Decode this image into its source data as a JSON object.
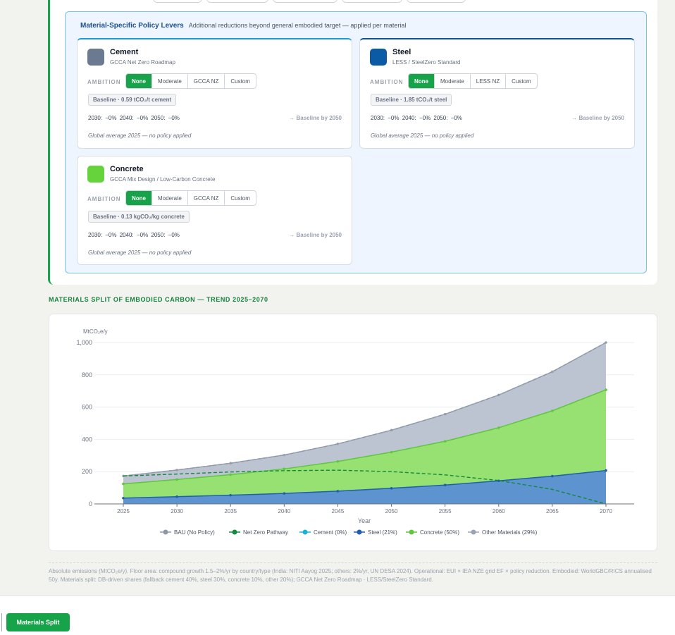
{
  "policy": {
    "title": "Material-Specific Policy Levers",
    "subtitle": "Additional reductions beyond general embodied target — applied per material",
    "ambition_label": "AMBITION",
    "materials": [
      {
        "name": "Cement",
        "roadmap": "GCCA Net Zero Roadmap",
        "color": "#6b7a90",
        "options": [
          "None",
          "Moderate",
          "GCCA NZ",
          "Custom"
        ],
        "active": "None",
        "baseline": "Baseline · 0.59 tCO₂/t cement",
        "targets": "2030: −0%   2040: −0%   2050: −0%",
        "baseline_2050": "→ Baseline by 2050",
        "note": "Global average 2025 — no policy applied"
      },
      {
        "name": "Steel",
        "roadmap": "LESS / SteelZero Standard",
        "color": "#0b5aa6",
        "options": [
          "None",
          "Moderate",
          "LESS NZ",
          "Custom"
        ],
        "active": "None",
        "baseline": "Baseline · 1.85 tCO₂/t steel",
        "targets": "2030: −0%   2040: −0%   2050: −0%",
        "baseline_2050": "→ Baseline by 2050",
        "note": "Global average 2025 — no policy applied"
      },
      {
        "name": "Concrete",
        "roadmap": "GCCA Mix Design / Low-Carbon Concrete",
        "color": "#66d23c",
        "options": [
          "None",
          "Moderate",
          "GCCA NZ",
          "Custom"
        ],
        "active": "None",
        "baseline": "Baseline · 0.13 kgCO₂/kg concrete",
        "targets": "2030: −0%   2040: −0%   2050: −0%",
        "baseline_2050": "→ Baseline by 2050",
        "note": "Global average 2025 — no policy applied"
      }
    ]
  },
  "split_section_title": "MATERIALS SPLIT OF EMBODIED CARBON — TREND 2025–2070",
  "chart_data": {
    "type": "area",
    "ylabel": "MtCO₂e/y",
    "xlabel": "Year",
    "x": [
      2025,
      2030,
      2035,
      2040,
      2045,
      2050,
      2055,
      2060,
      2065,
      2070
    ],
    "ylim": [
      0,
      1000
    ],
    "yticks": [
      0,
      200,
      400,
      600,
      800,
      1000
    ],
    "ytick_labels": [
      "0",
      "200",
      "400",
      "600",
      "800",
      "1,000"
    ],
    "grid": true,
    "legend_position": "bottom",
    "stacked_series": [
      {
        "name": "Steel (21%)",
        "color": "#1f5fae",
        "fill": "#5d93cf",
        "values": [
          36,
          45,
          54,
          65,
          79,
          97,
          117,
          143,
          172,
          207
        ]
      },
      {
        "name": "Concrete (50%)",
        "color": "#5ec83a",
        "fill": "#97e072",
        "values": [
          88,
          106,
          127,
          152,
          184,
          224,
          271,
          329,
          405,
          500
        ]
      },
      {
        "name": "Other Materials (29%)",
        "color": "#9aa3b5",
        "fill": "#bcc3d1",
        "values": [
          49,
          59,
          71,
          86,
          109,
          136,
          168,
          203,
          242,
          293
        ]
      }
    ],
    "flat_series": [
      {
        "name": "Cement (0%)",
        "color": "#1ab0d6",
        "values": [
          0,
          0,
          0,
          0,
          0,
          0,
          0,
          0,
          0,
          0
        ]
      }
    ],
    "line_series": [
      {
        "name": "BAU (No Policy)",
        "color": "#8f98a8",
        "dashed": true,
        "values": [
          173,
          210,
          252,
          303,
          372,
          457,
          556,
          675,
          819,
          1000
        ]
      },
      {
        "name": "Net Zero Pathway",
        "color": "#118a3c",
        "dashed": true,
        "values": [
          173,
          185,
          198,
          206,
          209,
          200,
          180,
          145,
          90,
          0
        ]
      }
    ],
    "legend": [
      {
        "name": "BAU (No Policy)",
        "color": "#8f98a8"
      },
      {
        "name": "Net Zero Pathway",
        "color": "#118a3c"
      },
      {
        "name": "Cement (0%)",
        "color": "#1ab0d6"
      },
      {
        "name": "Steel (21%)",
        "color": "#1f5fae"
      },
      {
        "name": "Concrete (50%)",
        "color": "#5ec83a"
      },
      {
        "name": "Other Materials (29%)",
        "color": "#9aa3b5"
      }
    ]
  },
  "footnote": "Absolute emissions (MtCO₂e/y). Floor area: compound growth 1.5–2%/yr by country/type (India: NITI Aayog 2025; others: 2%/yr, UN DESA 2024). Operational: EUI × IEA NZE grid EF × policy reduction. Embodied: WorldGBC/RICS annualised 50y. Materials split: DB-driven shares (fallback cement 40%, steel 30%, concrete 10%, other 20%); GCCA Net Zero Roadmap · LESS/SteelZero Standard.",
  "bottom": {
    "button_label": "Materials Split"
  }
}
